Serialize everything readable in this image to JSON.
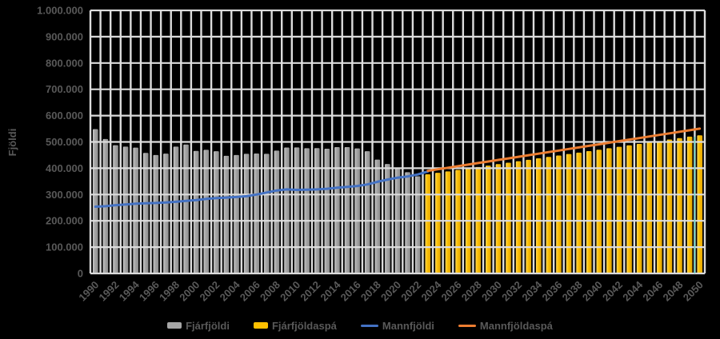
{
  "chart_data": {
    "type": "combo",
    "title": "",
    "ylabel": "Fjöldi",
    "ylim": [
      0,
      1000000
    ],
    "ytick_step": 100000,
    "ytick_labels": [
      "0",
      "100.000",
      "200.000",
      "300.000",
      "400.000",
      "500.000",
      "600.000",
      "700.000",
      "800.000",
      "900.000",
      "1.000.000"
    ],
    "x_start_year": 1990,
    "x_end_year": 2050,
    "xtick_labels": [
      "1990",
      "1992",
      "1994",
      "1996",
      "1998",
      "2000",
      "2002",
      "2004",
      "2006",
      "2008",
      "2010",
      "2012",
      "2014",
      "2016",
      "2018",
      "2020",
      "2022",
      "2024",
      "2026",
      "2028",
      "2030",
      "2032",
      "2034",
      "2036",
      "2038",
      "2040",
      "2042",
      "2044",
      "2046",
      "2048",
      "2050"
    ],
    "grid": {
      "horizontal": true,
      "vertical": true,
      "color": "#dcdcdc"
    },
    "background_color": "#000000",
    "axis_text_color": "#595959",
    "legend_position": "bottom",
    "series": [
      {
        "name": "Fjárfjöldi",
        "type": "bar",
        "color": "#a6a6a6",
        "gradient": [
          "#c9c9c9",
          "#a8a8a8",
          "#8e8e8e"
        ],
        "start_year": 1990,
        "values": [
          548500,
          510900,
          487500,
          482200,
          478200,
          458400,
          450300,
          455500,
          482100,
          490100,
          465800,
          469900,
          464600,
          447200,
          450100,
          454900,
          456000,
          454700,
          467100,
          478800,
          479000,
          475900,
          476300,
          474200,
          480300,
          480300,
          475200,
          464800,
          432700,
          415900,
          400700,
          384900,
          369300
        ]
      },
      {
        "name": "Fjárfjöldaspá",
        "type": "bar",
        "color": "#ffc000",
        "gradient": [
          "#ffd95e",
          "#ffc30a",
          "#e2a500"
        ],
        "start_year": 2023,
        "values": [
          377000,
          382500,
          388000,
          393500,
          399000,
          404500,
          410000,
          415500,
          421000,
          426500,
          432000,
          437500,
          443000,
          448500,
          454000,
          459500,
          465000,
          470500,
          476000,
          481500,
          487000,
          492500,
          498000,
          503500,
          509000,
          514500,
          520000,
          525000
        ]
      },
      {
        "name": "Mannfjöldi",
        "type": "line",
        "color": "#4472c4",
        "start_year": 1990,
        "values": [
          253800,
          255700,
          259600,
          262200,
          264900,
          266800,
          267800,
          269700,
          272400,
          275700,
          279000,
          283400,
          286600,
          288500,
          290600,
          293600,
          299900,
          307700,
          315500,
          319400,
          317600,
          318500,
          319600,
          321900,
          325700,
          329100,
          332500,
          338400,
          348400,
          356900,
          364100,
          368800,
          376200,
          387800
        ]
      },
      {
        "name": "Mannfjöldaspá",
        "type": "line",
        "color": "#ed7d31",
        "start_year": 2023,
        "values": [
          390000,
          395900,
          401900,
          407800,
          413800,
          419700,
          425600,
          431600,
          437500,
          443500,
          449400,
          455300,
          461300,
          467200,
          473200,
          479100,
          485000,
          491000,
          496900,
          502900,
          508800,
          514700,
          520700,
          526600,
          532600,
          538500,
          544400,
          550400
        ]
      }
    ],
    "stray_teal_line": {
      "color": "#5fd8c8",
      "between_years": [
        2049,
        2050
      ],
      "top_value": 520000
    }
  }
}
